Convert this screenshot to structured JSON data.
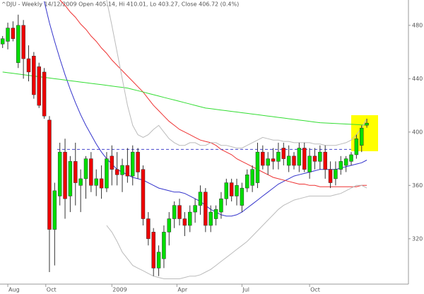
{
  "chart_data": {
    "type": "candlestick",
    "title": "^DJU - Weekly 14/12/2009 Open 405.14, Hi 410.01, Lo 403.27, Close 406.72 (0.4%)",
    "open": [
      466,
      468,
      478,
      452,
      480,
      455,
      457,
      449,
      445,
      409,
      327,
      352,
      385,
      352,
      378,
      360,
      365,
      380,
      360,
      365,
      358,
      382,
      372,
      368,
      375,
      367,
      385,
      372,
      335,
      325,
      298,
      305,
      325,
      335,
      345,
      335,
      330,
      340,
      345,
      355,
      330,
      335,
      340,
      350,
      362,
      352,
      345,
      358,
      360,
      362,
      385,
      375,
      380,
      378,
      388,
      375,
      382,
      375,
      388,
      370,
      382,
      378,
      385,
      372,
      365,
      372,
      375,
      378,
      383,
      390,
      405.14
    ],
    "high": [
      472,
      482,
      483,
      488,
      484,
      465,
      460,
      452,
      448,
      412,
      362,
      392,
      395,
      382,
      392,
      372,
      382,
      385,
      372,
      375,
      385,
      390,
      385,
      380,
      388,
      390,
      388,
      375,
      340,
      328,
      315,
      330,
      340,
      348,
      350,
      340,
      345,
      350,
      360,
      358,
      345,
      345,
      355,
      365,
      365,
      365,
      362,
      372,
      375,
      392,
      390,
      385,
      388,
      392,
      392,
      390,
      385,
      392,
      392,
      388,
      388,
      390,
      390,
      378,
      378,
      382,
      382,
      385,
      398,
      405,
      410.01
    ],
    "low": [
      463,
      462,
      468,
      448,
      440,
      438,
      425,
      418,
      410,
      295,
      300,
      345,
      335,
      340,
      345,
      340,
      350,
      355,
      352,
      350,
      355,
      360,
      360,
      355,
      362,
      360,
      365,
      330,
      315,
      292,
      292,
      298,
      315,
      328,
      330,
      322,
      325,
      332,
      338,
      325,
      325,
      330,
      335,
      345,
      348,
      345,
      340,
      355,
      355,
      358,
      372,
      368,
      372,
      372,
      375,
      370,
      372,
      370,
      370,
      365,
      372,
      372,
      365,
      358,
      360,
      368,
      370,
      375,
      380,
      385,
      403.27
    ],
    "close": [
      470,
      478,
      470,
      480,
      455,
      445,
      428,
      420,
      412,
      327,
      356,
      385,
      350,
      378,
      362,
      365,
      380,
      360,
      365,
      358,
      380,
      372,
      368,
      375,
      367,
      385,
      370,
      335,
      320,
      298,
      310,
      325,
      335,
      345,
      335,
      330,
      340,
      345,
      355,
      330,
      340,
      342,
      350,
      362,
      352,
      360,
      358,
      368,
      372,
      385,
      375,
      380,
      378,
      385,
      380,
      382,
      375,
      388,
      372,
      382,
      378,
      385,
      372,
      362,
      372,
      378,
      380,
      383,
      395,
      403,
      406.72
    ],
    "up_color": "#00dd00",
    "down_color": "#ee0000",
    "lines": [
      {
        "color": "#3333cc",
        "values": [
          null,
          null,
          null,
          null,
          null,
          null,
          null,
          null,
          498,
          482,
          468,
          455,
          443,
          432,
          422,
          413,
          405,
          398,
          391,
          385,
          380,
          376,
          372,
          370,
          368,
          366,
          365,
          364,
          362,
          360,
          358,
          357,
          356,
          355,
          355,
          354,
          352,
          350,
          348,
          345,
          342,
          340,
          338,
          337,
          337,
          338,
          340,
          343,
          346,
          349,
          352,
          355,
          358,
          361,
          363,
          365,
          367,
          368,
          369,
          370,
          371,
          372,
          372,
          372,
          372,
          373,
          374,
          375,
          376,
          377,
          379
        ]
      },
      {
        "color": "#ee3333",
        "values": [
          null,
          null,
          null,
          null,
          null,
          null,
          null,
          null,
          null,
          null,
          null,
          499,
          495,
          490,
          486,
          481,
          477,
          472,
          468,
          463,
          459,
          454,
          450,
          446,
          442,
          438,
          434,
          430,
          425,
          420,
          416,
          412,
          408,
          405,
          402,
          400,
          398,
          396,
          394,
          393,
          392,
          390,
          387,
          385,
          383,
          380,
          378,
          376,
          374,
          372,
          370,
          368,
          366,
          365,
          364,
          363,
          362,
          361,
          361,
          360,
          360,
          359,
          359,
          359,
          359,
          359,
          359,
          359,
          359,
          360,
          360
        ]
      },
      {
        "color": "#33dd33",
        "values": [
          445,
          444.5,
          444,
          443.5,
          443,
          442.5,
          442,
          441.5,
          441,
          440.5,
          440,
          439.5,
          439,
          438.5,
          438,
          437.5,
          437,
          436.5,
          436,
          435.5,
          435,
          434.5,
          434,
          433.5,
          433,
          432,
          431,
          430,
          429,
          428,
          427,
          426,
          425,
          424,
          423,
          422,
          421,
          420,
          419,
          418,
          417.5,
          417,
          416.5,
          416,
          415.5,
          415,
          414.5,
          414,
          413.5,
          413,
          412.5,
          412,
          411.5,
          411,
          410.5,
          410,
          409.5,
          409,
          408.5,
          408,
          407.5,
          407,
          406.8,
          406.6,
          406.4,
          406.2,
          406,
          405.8,
          405.6,
          405.4,
          405.2
        ]
      },
      {
        "color": "#bbbbbb",
        "values": [
          null,
          null,
          null,
          null,
          null,
          null,
          null,
          null,
          null,
          null,
          null,
          null,
          null,
          null,
          null,
          null,
          null,
          null,
          null,
          null,
          499,
          480,
          460,
          440,
          420,
          405,
          398,
          396,
          398,
          402,
          405,
          400,
          395,
          392,
          390,
          390,
          392,
          392,
          390,
          390,
          392,
          392,
          390,
          390,
          389,
          388,
          388,
          390,
          392,
          394,
          396,
          395,
          394,
          394,
          393,
          393,
          392,
          392,
          392,
          392,
          391,
          391,
          390,
          390,
          390,
          391,
          392,
          394,
          398,
          403,
          410
        ]
      },
      {
        "color": "#bbbbbb",
        "values": [
          null,
          null,
          null,
          null,
          null,
          null,
          null,
          null,
          null,
          null,
          null,
          null,
          null,
          null,
          null,
          null,
          null,
          null,
          null,
          null,
          330,
          325,
          318,
          310,
          305,
          300,
          298,
          296,
          294,
          292,
          291,
          290,
          290,
          290,
          290,
          291,
          292,
          292,
          293,
          295,
          297,
          300,
          303,
          306,
          309,
          312,
          315,
          318,
          322,
          326,
          330,
          334,
          338,
          342,
          345,
          347,
          349,
          350,
          351,
          352,
          352,
          352,
          352,
          352,
          353,
          354,
          356,
          358,
          360,
          360,
          358
        ]
      }
    ],
    "hline": {
      "y": 387,
      "x": [
        10.5,
        67
      ],
      "color": "#4444cc"
    },
    "xlim": [
      -0.5,
      78
    ],
    "ylim": [
      286,
      499
    ],
    "xticks": [
      {
        "value": 1,
        "label": "Aug"
      },
      {
        "value": 8.3,
        "label": "Oct"
      },
      {
        "value": 21,
        "label": "2009"
      },
      {
        "value": 33.5,
        "label": "Apr"
      },
      {
        "value": 46,
        "label": "Jul"
      },
      {
        "value": 59,
        "label": "Oct"
      }
    ],
    "yticks": [
      320,
      360,
      400,
      440,
      480
    ]
  }
}
